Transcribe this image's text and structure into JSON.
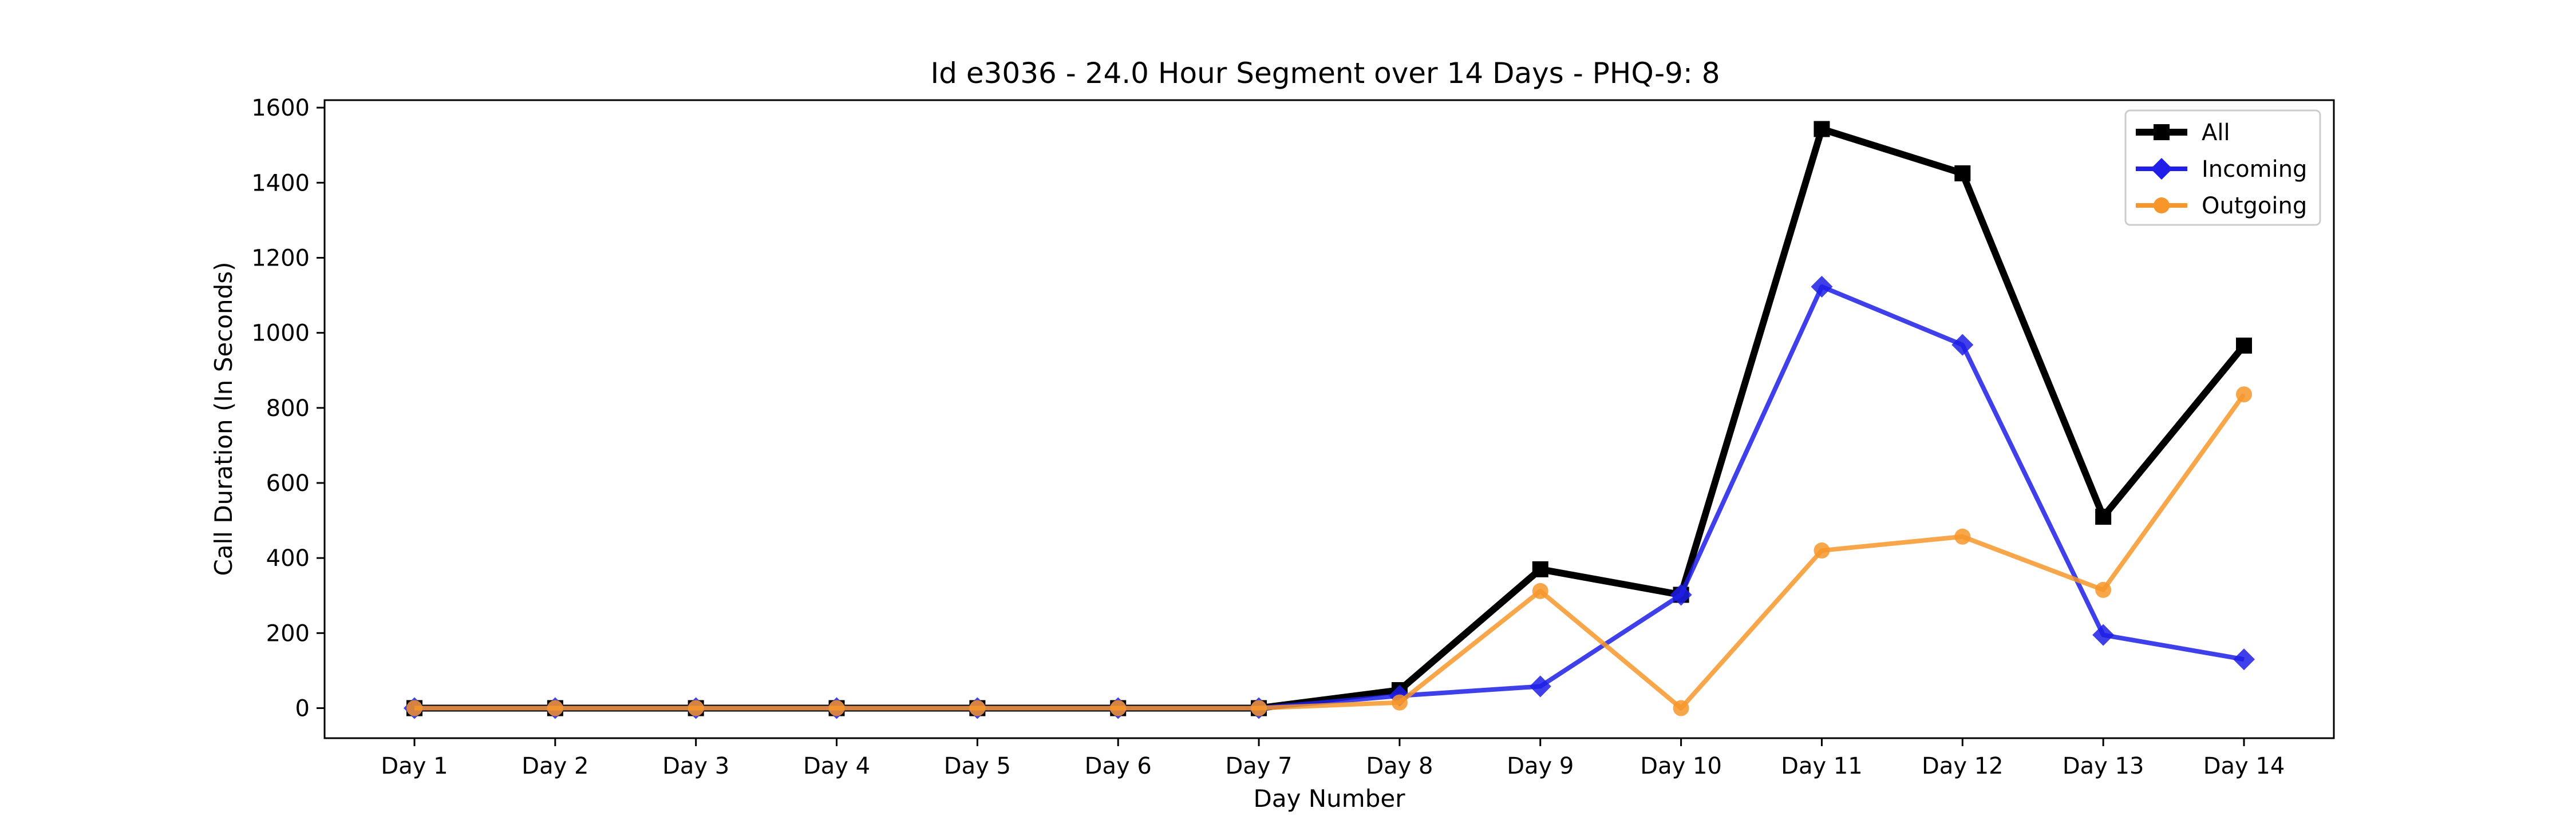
{
  "chart_data": {
    "type": "line",
    "title": "Id e3036 - 24.0 Hour Segment over 14 Days - PHQ-9: 8",
    "xlabel": "Day Number",
    "ylabel": "Call Duration (In Seconds)",
    "categories": [
      "Day 1",
      "Day 2",
      "Day 3",
      "Day 4",
      "Day 5",
      "Day 6",
      "Day 7",
      "Day 8",
      "Day 9",
      "Day 10",
      "Day 11",
      "Day 12",
      "Day 13",
      "Day 14"
    ],
    "ylim": [
      -80,
      1620
    ],
    "yticks": [
      0,
      200,
      400,
      600,
      800,
      1000,
      1200,
      1400,
      1600
    ],
    "grid": false,
    "legend_position": "top-right",
    "series": [
      {
        "name": "All",
        "color": "#000000",
        "marker": "square",
        "values": [
          0,
          0,
          0,
          0,
          0,
          0,
          0,
          48,
          370,
          302,
          1543,
          1425,
          510,
          966
        ]
      },
      {
        "name": "Incoming",
        "color": "#1f1fe8",
        "marker": "diamond",
        "values": [
          0,
          0,
          0,
          0,
          0,
          0,
          0,
          33,
          58,
          302,
          1123,
          968,
          195,
          130
        ]
      },
      {
        "name": "Outgoing",
        "color": "#f7962a",
        "marker": "circle",
        "values": [
          0,
          0,
          0,
          0,
          0,
          0,
          0,
          15,
          312,
          0,
          420,
          457,
          315,
          836
        ]
      }
    ]
  }
}
